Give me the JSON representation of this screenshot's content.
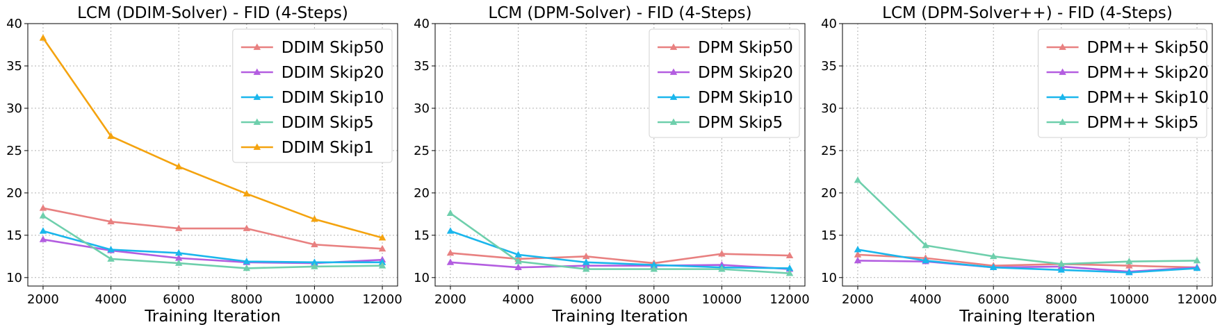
{
  "chart_data": [
    {
      "type": "line",
      "title": "LCM (DDIM-Solver) - FID (4-Steps)",
      "xlabel": "Training Iteration",
      "ylabel": "",
      "x": [
        2000,
        4000,
        6000,
        8000,
        10000,
        12000
      ],
      "xticks": [
        2000,
        4000,
        6000,
        8000,
        10000,
        12000
      ],
      "yticks": [
        10,
        15,
        20,
        25,
        30,
        35,
        40
      ],
      "xlim": [
        1550,
        12450
      ],
      "ylim": [
        9,
        40
      ],
      "grid": true,
      "legend_position": "top-right",
      "series": [
        {
          "name": "DDIM Skip50",
          "color": "#e88080",
          "values": [
            18.2,
            16.6,
            15.8,
            15.8,
            13.9,
            13.4
          ]
        },
        {
          "name": "DDIM Skip20",
          "color": "#b35de0",
          "values": [
            14.5,
            13.2,
            12.3,
            11.8,
            11.7,
            12.1
          ]
        },
        {
          "name": "DDIM Skip10",
          "color": "#1ab6ec",
          "values": [
            15.5,
            13.3,
            12.9,
            11.9,
            11.8,
            11.8
          ]
        },
        {
          "name": "DDIM Skip5",
          "color": "#6ecfac",
          "values": [
            17.3,
            12.2,
            11.7,
            11.1,
            11.3,
            11.4
          ]
        },
        {
          "name": "DDIM Skip1",
          "color": "#f4a30f",
          "values": [
            38.3,
            26.7,
            23.1,
            19.9,
            16.9,
            14.7
          ]
        }
      ]
    },
    {
      "type": "line",
      "title": "LCM (DPM-Solver) - FID (4-Steps)",
      "xlabel": "Training Iteration",
      "ylabel": "",
      "x": [
        2000,
        4000,
        6000,
        8000,
        10000,
        12000
      ],
      "xticks": [
        2000,
        4000,
        6000,
        8000,
        10000,
        12000
      ],
      "yticks": [
        10,
        15,
        20,
        25,
        30,
        35,
        40
      ],
      "xlim": [
        1550,
        12450
      ],
      "ylim": [
        9,
        40
      ],
      "grid": true,
      "legend_position": "top-right",
      "series": [
        {
          "name": "DPM Skip50",
          "color": "#e88080",
          "values": [
            12.9,
            12.2,
            12.5,
            11.7,
            12.8,
            12.6
          ]
        },
        {
          "name": "DPM Skip20",
          "color": "#b35de0",
          "values": [
            11.8,
            11.2,
            11.4,
            11.4,
            11.5,
            11.0
          ]
        },
        {
          "name": "DPM Skip10",
          "color": "#1ab6ec",
          "values": [
            15.5,
            12.7,
            11.8,
            11.5,
            11.2,
            11.1
          ]
        },
        {
          "name": "DPM Skip5",
          "color": "#6ecfac",
          "values": [
            17.6,
            11.9,
            11.0,
            11.0,
            11.0,
            10.5
          ]
        }
      ]
    },
    {
      "type": "line",
      "title": "LCM (DPM-Solver++) - FID (4-Steps)",
      "xlabel": "Training Iteration",
      "ylabel": "",
      "x": [
        2000,
        4000,
        6000,
        8000,
        10000,
        12000
      ],
      "xticks": [
        2000,
        4000,
        6000,
        8000,
        10000,
        12000
      ],
      "yticks": [
        10,
        15,
        20,
        25,
        30,
        35,
        40
      ],
      "xlim": [
        1550,
        12450
      ],
      "ylim": [
        9,
        40
      ],
      "grid": true,
      "legend_position": "top-right",
      "series": [
        {
          "name": "DPM++ Skip50",
          "color": "#e88080",
          "values": [
            12.7,
            12.3,
            11.4,
            11.6,
            11.4,
            11.2
          ]
        },
        {
          "name": "DPM++ Skip20",
          "color": "#b35de0",
          "values": [
            12.0,
            11.9,
            11.2,
            11.3,
            10.7,
            11.2
          ]
        },
        {
          "name": "DPM++ Skip10",
          "color": "#1ab6ec",
          "values": [
            13.3,
            12.0,
            11.2,
            10.9,
            10.6,
            11.1
          ]
        },
        {
          "name": "DPM++ Skip5",
          "color": "#6ecfac",
          "values": [
            21.5,
            13.8,
            12.5,
            11.6,
            11.9,
            12.0
          ]
        }
      ]
    }
  ]
}
